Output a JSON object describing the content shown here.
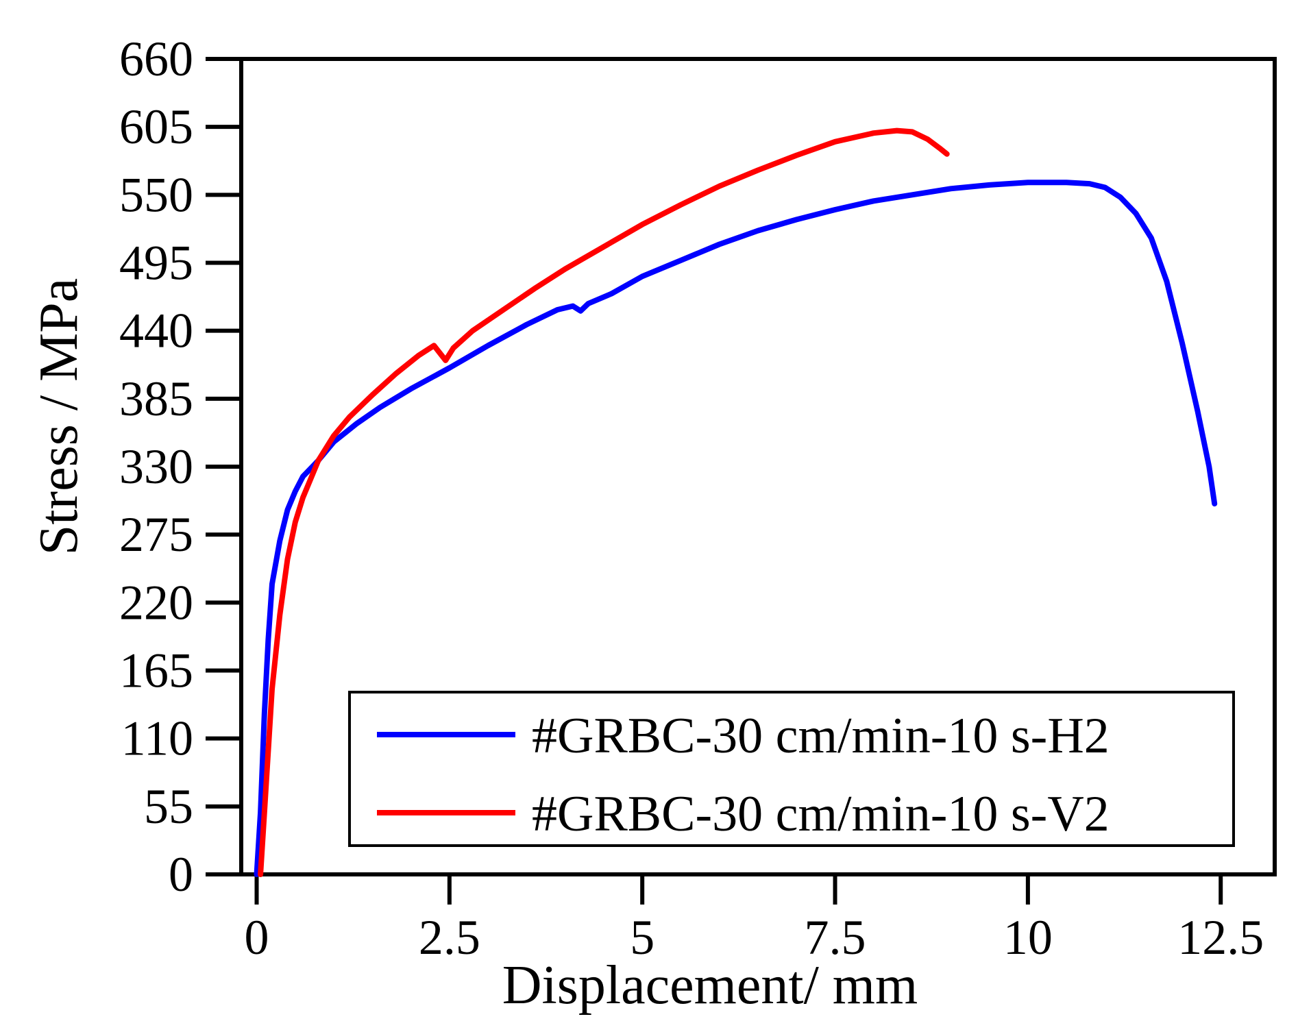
{
  "chart_data": {
    "type": "line",
    "title": "",
    "xlabel": "Displacement/ mm",
    "ylabel": "Stress / MPa",
    "xlim": [
      -0.2,
      13.2
    ],
    "ylim": [
      0,
      660
    ],
    "xticks": [
      0,
      2.5,
      5,
      7.5,
      10,
      12.5
    ],
    "xtick_labels": [
      "0",
      "2.5",
      "5",
      "7.5",
      "10",
      "12.5"
    ],
    "yticks": [
      0,
      55,
      110,
      165,
      220,
      275,
      330,
      385,
      440,
      495,
      550,
      605,
      660
    ],
    "ytick_labels": [
      "0",
      "55",
      "110",
      "165",
      "220",
      "275",
      "330",
      "385",
      "440",
      "495",
      "550",
      "605",
      "660"
    ],
    "grid": false,
    "legend_position": "bottom-right",
    "series": [
      {
        "name": "#GRBC-30 cm/min-10 s-H2",
        "color": "#0000ff",
        "points": [
          [
            0,
            0
          ],
          [
            0.05,
            50
          ],
          [
            0.1,
            130
          ],
          [
            0.15,
            190
          ],
          [
            0.2,
            235
          ],
          [
            0.3,
            270
          ],
          [
            0.4,
            295
          ],
          [
            0.5,
            310
          ],
          [
            0.6,
            322
          ],
          [
            0.8,
            335
          ],
          [
            1.0,
            350
          ],
          [
            1.3,
            365
          ],
          [
            1.6,
            378
          ],
          [
            2.0,
            393
          ],
          [
            2.5,
            410
          ],
          [
            3.0,
            428
          ],
          [
            3.5,
            445
          ],
          [
            3.9,
            457
          ],
          [
            4.1,
            460
          ],
          [
            4.2,
            456
          ],
          [
            4.3,
            462
          ],
          [
            4.6,
            470
          ],
          [
            5.0,
            484
          ],
          [
            5.5,
            497
          ],
          [
            6.0,
            510
          ],
          [
            6.5,
            521
          ],
          [
            7.0,
            530
          ],
          [
            7.5,
            538
          ],
          [
            8.0,
            545
          ],
          [
            8.5,
            550
          ],
          [
            9.0,
            555
          ],
          [
            9.5,
            558
          ],
          [
            10.0,
            560
          ],
          [
            10.5,
            560
          ],
          [
            10.8,
            559
          ],
          [
            11.0,
            556
          ],
          [
            11.2,
            548
          ],
          [
            11.4,
            535
          ],
          [
            11.6,
            515
          ],
          [
            11.8,
            480
          ],
          [
            12.0,
            430
          ],
          [
            12.2,
            375
          ],
          [
            12.35,
            330
          ],
          [
            12.42,
            300
          ]
        ]
      },
      {
        "name": "#GRBC-30 cm/min-10 s-V2",
        "color": "#ff0000",
        "points": [
          [
            0.05,
            0
          ],
          [
            0.1,
            50
          ],
          [
            0.15,
            100
          ],
          [
            0.2,
            150
          ],
          [
            0.3,
            210
          ],
          [
            0.4,
            255
          ],
          [
            0.5,
            285
          ],
          [
            0.6,
            305
          ],
          [
            0.7,
            320
          ],
          [
            0.8,
            335
          ],
          [
            1.0,
            355
          ],
          [
            1.2,
            370
          ],
          [
            1.5,
            388
          ],
          [
            1.8,
            405
          ],
          [
            2.1,
            420
          ],
          [
            2.3,
            428
          ],
          [
            2.45,
            416
          ],
          [
            2.55,
            426
          ],
          [
            2.8,
            440
          ],
          [
            3.2,
            457
          ],
          [
            3.6,
            474
          ],
          [
            4.0,
            490
          ],
          [
            4.5,
            508
          ],
          [
            5.0,
            526
          ],
          [
            5.5,
            542
          ],
          [
            6.0,
            557
          ],
          [
            6.5,
            570
          ],
          [
            7.0,
            582
          ],
          [
            7.5,
            593
          ],
          [
            8.0,
            600
          ],
          [
            8.3,
            602
          ],
          [
            8.5,
            601
          ],
          [
            8.7,
            595
          ],
          [
            8.85,
            588
          ],
          [
            8.95,
            583
          ]
        ]
      }
    ]
  }
}
